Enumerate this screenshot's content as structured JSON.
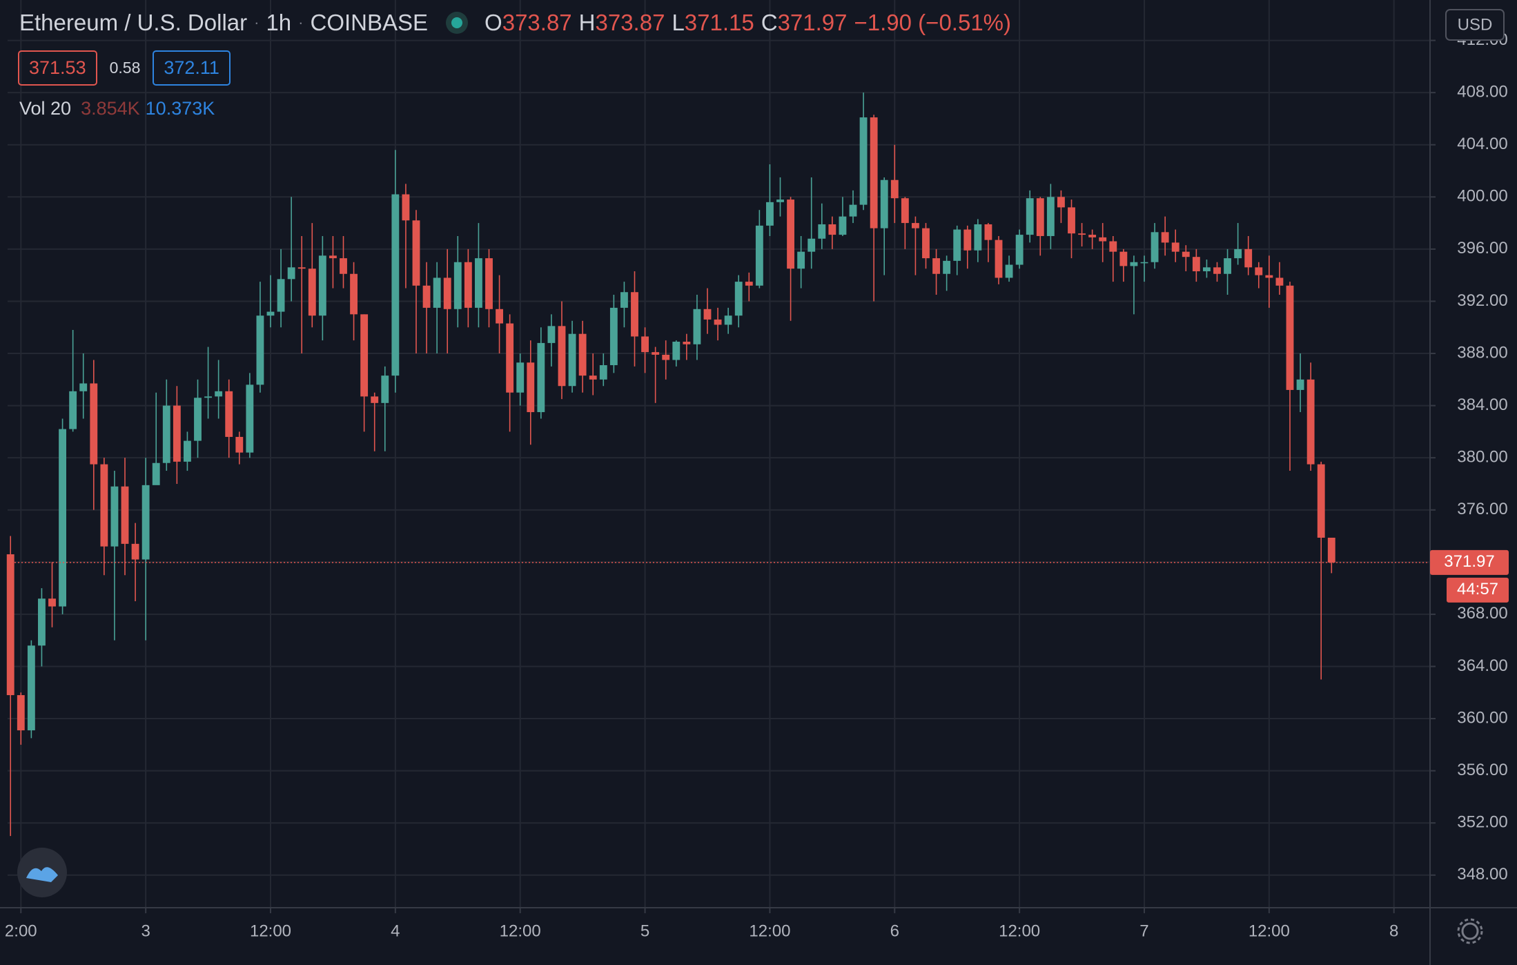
{
  "chart_data": {
    "type": "candlestick",
    "title": "Ethereum / U.S. Dollar",
    "interval": "1h",
    "exchange": "COINBASE",
    "ohlc_labels": [
      "O",
      "H",
      "L",
      "C"
    ],
    "change": "−1.90 (−0.51%)",
    "bid": "371.53",
    "spread": "0.58",
    "ask": "372.11",
    "volume_label": "Vol 20",
    "volume_values": [
      "3.854K",
      "10.373K"
    ],
    "currency": "USD",
    "countdown": "44:57",
    "up_color": "#4aa397",
    "down_color": "#e2564f",
    "open": [
      372.6,
      361.8,
      359.1,
      365.6,
      369.2,
      368.6,
      382.2,
      385.1,
      385.7,
      379.5,
      373.2,
      377.8,
      373.4,
      372.2,
      377.9,
      379.6,
      384,
      379.7,
      381.3,
      384.6,
      384.7,
      385.1,
      381.6,
      380.4,
      385.6,
      390.9,
      391.2,
      393.7,
      394.6,
      394.5,
      390.9,
      395.5,
      395.3,
      394.1,
      391,
      384.7,
      384.2,
      386.3,
      400.2,
      398.2,
      393.2,
      391.5,
      393.8,
      391.4,
      395,
      391.5,
      395.3,
      391.4,
      390.3,
      385,
      387.3,
      383.5,
      388.8,
      390.1,
      385.5,
      389.5,
      386.3,
      386,
      387.1,
      391.5,
      392.7,
      389.3,
      388.1,
      387.9,
      387.5,
      388.9,
      388.7,
      391.4,
      390.6,
      390.2,
      390.9,
      393.5,
      393.2,
      397.8,
      399.6,
      399.8,
      394.5,
      395.8,
      396.8,
      397.9,
      397.1,
      398.5,
      399.4,
      406.1,
      397.6,
      401.3,
      399.9,
      398,
      397.6,
      395.3,
      394.1,
      395.1,
      397.5,
      395.9,
      397.9,
      396.7,
      393.8,
      394.8,
      397.1,
      399.9,
      397,
      400,
      399.2,
      397.2,
      397.1,
      396.9,
      396.6,
      395.8,
      394.7,
      395,
      395,
      397.3,
      396.5,
      395.8,
      395.4,
      394.3,
      394.6,
      394.1,
      395.3,
      396,
      394.6,
      394,
      393.8,
      393.2,
      385.2,
      386,
      379.5,
      373.87
    ],
    "high": [
      374,
      362,
      366,
      370,
      372,
      383,
      389.8,
      388,
      387.5,
      380,
      379,
      380,
      375,
      380,
      385,
      386,
      385.5,
      382,
      386,
      388.5,
      387.5,
      386,
      382,
      386.5,
      393.5,
      394,
      396,
      400,
      397,
      398,
      397,
      397,
      397,
      395,
      391,
      385,
      387,
      403.6,
      401,
      399,
      395,
      395,
      396,
      397,
      396,
      398,
      396,
      394,
      391,
      388,
      389,
      390,
      391,
      392,
      390.5,
      390.5,
      388,
      388,
      392.5,
      393.5,
      394.3,
      390,
      388.5,
      389,
      389,
      389.5,
      392.5,
      393,
      391.5,
      391.5,
      394,
      394.2,
      399,
      402.5,
      401.5,
      400,
      397,
      401.5,
      399.5,
      398.5,
      400,
      400.5,
      408,
      406.3,
      401.5,
      404,
      400,
      398.5,
      398,
      396,
      395.5,
      397.8,
      397.8,
      398.3,
      398,
      397,
      395.5,
      397.5,
      400.5,
      400,
      401,
      400.5,
      399.8,
      398,
      397.5,
      398,
      397,
      396,
      395.5,
      395.5,
      398,
      398.5,
      397.5,
      396.3,
      396,
      395.2,
      395,
      396,
      398,
      397,
      395,
      395.5,
      395,
      393.5,
      388,
      387.3,
      379.7,
      373.87
    ],
    "low": [
      351,
      358,
      358.5,
      364,
      367,
      368,
      382,
      383,
      376,
      371,
      366,
      371,
      369,
      366,
      378,
      379,
      378,
      379,
      380,
      383,
      383,
      380,
      379.5,
      380,
      385,
      390,
      390,
      392,
      388,
      390,
      389,
      393,
      393,
      389,
      382,
      380.5,
      380.5,
      385,
      393,
      388,
      388,
      388,
      388,
      390,
      390,
      390,
      390,
      388,
      382,
      384,
      381,
      383,
      387,
      384.5,
      385,
      385,
      384.8,
      385.5,
      386.5,
      390,
      387,
      386.5,
      384.2,
      386,
      387,
      387.5,
      387.5,
      389.5,
      389,
      389.5,
      390,
      392,
      393,
      397,
      398.5,
      390.5,
      393,
      394.5,
      396,
      396,
      397,
      398,
      399,
      392,
      394,
      398,
      396,
      394,
      394.5,
      392.5,
      392.8,
      394,
      394.5,
      395,
      395,
      393.3,
      393.5,
      394.5,
      396.5,
      395.5,
      396,
      398,
      395.3,
      396.2,
      396,
      395,
      393.5,
      393.5,
      391,
      393.5,
      394.5,
      395.5,
      395,
      394.3,
      393.5,
      393.8,
      393.5,
      392.5,
      394.8,
      394,
      393,
      391.5,
      392.5,
      379,
      383.5,
      379,
      363,
      371.15
    ],
    "close": [
      361.8,
      359.1,
      365.6,
      369.2,
      368.6,
      382.2,
      385.1,
      385.7,
      379.5,
      373.2,
      377.8,
      373.4,
      372.2,
      377.9,
      379.6,
      384,
      379.7,
      381.3,
      384.6,
      384.7,
      385.1,
      381.6,
      380.4,
      385.6,
      390.9,
      391.2,
      393.7,
      394.6,
      394.5,
      390.9,
      395.5,
      395.3,
      394.1,
      391,
      384.7,
      384.2,
      386.3,
      400.2,
      398.2,
      393.2,
      391.5,
      393.8,
      391.4,
      395,
      391.5,
      395.3,
      391.4,
      390.3,
      385,
      387.3,
      383.5,
      388.8,
      390.1,
      385.5,
      389.5,
      386.3,
      386,
      387.1,
      391.5,
      392.7,
      389.3,
      388.1,
      387.9,
      387.5,
      388.9,
      388.7,
      391.4,
      390.6,
      390.2,
      390.9,
      393.5,
      393.2,
      397.8,
      399.6,
      399.8,
      394.5,
      395.8,
      396.8,
      397.9,
      397.1,
      398.5,
      399.4,
      406.1,
      397.6,
      401.3,
      399.9,
      398,
      397.6,
      395.3,
      394.1,
      395.1,
      397.5,
      395.9,
      397.9,
      396.7,
      393.8,
      394.8,
      397.1,
      399.9,
      397,
      400,
      399.2,
      397.2,
      397.1,
      396.9,
      396.6,
      395.8,
      394.7,
      395,
      395,
      397.3,
      396.5,
      395.8,
      395.4,
      394.3,
      394.6,
      394.1,
      395.3,
      396,
      394.6,
      394,
      393.8,
      393.2,
      385.2,
      386,
      379.5,
      373.87,
      371.97
    ],
    "ylim": [
      345.5,
      415.1
    ],
    "yticks": [
      {
        "value": 348,
        "label": "348.00"
      },
      {
        "value": 352,
        "label": "352.00"
      },
      {
        "value": 356,
        "label": "356.00"
      },
      {
        "value": 360,
        "label": "360.00"
      },
      {
        "value": 364,
        "label": "364.00"
      },
      {
        "value": 368,
        "label": "368.00"
      },
      {
        "value": 372,
        "label": "372.00"
      },
      {
        "value": 376,
        "label": "376.00"
      },
      {
        "value": 380,
        "label": "380.00"
      },
      {
        "value": 384,
        "label": "384.00"
      },
      {
        "value": 388,
        "label": "388.00"
      },
      {
        "value": 392,
        "label": "392.00"
      },
      {
        "value": 396,
        "label": "396.00"
      },
      {
        "value": 400,
        "label": "400.00"
      },
      {
        "value": 404,
        "label": "404.00"
      },
      {
        "value": 408,
        "label": "408.00"
      },
      {
        "value": 412,
        "label": "412.00"
      }
    ],
    "xlim": [
      -0.28,
      136.47
    ],
    "xticks": [
      {
        "value": 1,
        "label": "2:00"
      },
      {
        "value": 13,
        "label": "3"
      },
      {
        "value": 25,
        "label": "12:00"
      },
      {
        "value": 37,
        "label": "4"
      },
      {
        "value": 49,
        "label": "12:00"
      },
      {
        "value": 61,
        "label": "5"
      },
      {
        "value": 73,
        "label": "12:00"
      },
      {
        "value": 85,
        "label": "6"
      },
      {
        "value": 97,
        "label": "12:00"
      },
      {
        "value": 109,
        "label": "7"
      },
      {
        "value": 121,
        "label": "12:00"
      },
      {
        "value": 133,
        "label": "8"
      }
    ],
    "grid": true
  }
}
